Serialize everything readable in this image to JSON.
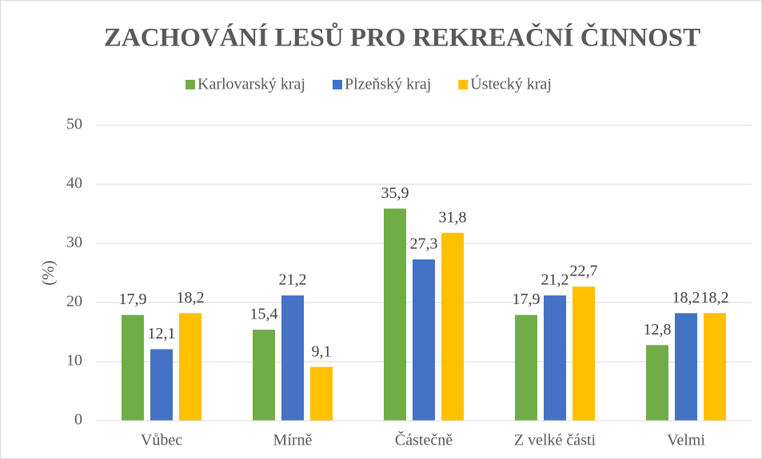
{
  "chart_data": {
    "type": "bar",
    "title": "ZACHOVÁNÍ LESŮ PRO REKREAČNÍ ČINNOST",
    "y_label": "(%)",
    "categories": [
      "Vůbec",
      "Mírně",
      "Částečně",
      "Z velké části",
      "Velmi"
    ],
    "series": [
      {
        "name": "Karlovarský kraj",
        "color": "#70ad47",
        "values": [
          17.9,
          15.4,
          35.9,
          17.9,
          12.8
        ],
        "value_labels": [
          "17,9",
          "15,4",
          "35,9",
          "17,9",
          "12,8"
        ]
      },
      {
        "name": "Plzeňský kraj",
        "color": "#4472c4",
        "values": [
          12.1,
          21.2,
          27.3,
          21.2,
          18.2
        ],
        "value_labels": [
          "12,1",
          "21,2",
          "27,3",
          "21,2",
          "18,2"
        ]
      },
      {
        "name": "Ústecký kraj",
        "color": "#ffc000",
        "values": [
          18.2,
          9.1,
          31.8,
          22.7,
          18.2
        ],
        "value_labels": [
          "18,2",
          "9,1",
          "31,8",
          "22,7",
          "18,2"
        ]
      }
    ],
    "ylim": [
      0,
      50
    ],
    "yticks": [
      0,
      10,
      20,
      30,
      40,
      50
    ],
    "grid": true,
    "legend": "top"
  }
}
